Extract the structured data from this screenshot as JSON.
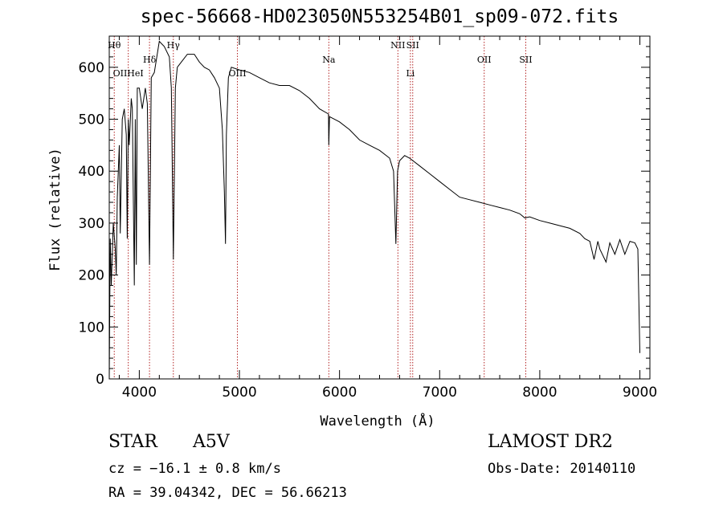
{
  "title": "spec-56668-HD023050N553254B01_sp09-072.fits",
  "info": {
    "class": "STAR",
    "subclass": "A5V",
    "survey": "LAMOST DR2",
    "cz": "cz = −16.1 ± 0.8 km/s",
    "obs_date": "Obs-Date: 20140110",
    "radec": "RA =  39.04342, DEC =  56.66213"
  },
  "chart_data": {
    "type": "line",
    "title": "spec-56668-HD023050N553254B01_sp09-072.fits",
    "xlabel": "Wavelength (Å)",
    "ylabel": "Flux (relative)",
    "xlim": [
      3700,
      9100
    ],
    "ylim": [
      0,
      660
    ],
    "xticks": [
      4000,
      5000,
      6000,
      7000,
      8000,
      9000
    ],
    "yticks": [
      0,
      100,
      200,
      300,
      400,
      500,
      600
    ],
    "series": [
      {
        "x": [
          3700,
          3710,
          3720,
          3740,
          3760,
          3770,
          3780,
          3800,
          3810,
          3830,
          3850,
          3870,
          3880,
          3890,
          3900,
          3920,
          3930,
          3950,
          3960,
          3970,
          3980,
          4000,
          4030,
          4060,
          4080,
          4102,
          4120,
          4150,
          4200,
          4250,
          4300,
          4320,
          4340,
          4360,
          4380,
          4420,
          4480,
          4550,
          4600,
          4650,
          4700,
          4750,
          4800,
          4830,
          4850,
          4861,
          4870,
          4890,
          4920,
          5000,
          5100,
          5200,
          5300,
          5400,
          5500,
          5600,
          5700,
          5800,
          5890,
          5893,
          5900,
          6000,
          6100,
          6200,
          6300,
          6400,
          6500,
          6540,
          6563,
          6580,
          6600,
          6650,
          6700,
          6800,
          6900,
          7000,
          7100,
          7200,
          7300,
          7400,
          7500,
          7600,
          7700,
          7800,
          7850,
          7900,
          8000,
          8100,
          8200,
          8300,
          8400,
          8450,
          8500,
          8542,
          8580,
          8600,
          8662,
          8700,
          8750,
          8800,
          8850,
          8900,
          8950,
          8980,
          9000
        ],
        "values": [
          0,
          270,
          180,
          300,
          250,
          200,
          350,
          450,
          280,
          500,
          520,
          470,
          270,
          500,
          450,
          540,
          520,
          180,
          500,
          220,
          560,
          560,
          520,
          560,
          530,
          220,
          580,
          590,
          650,
          640,
          620,
          560,
          230,
          560,
          600,
          610,
          625,
          625,
          610,
          600,
          595,
          580,
          560,
          480,
          360,
          260,
          470,
          580,
          600,
          595,
          590,
          580,
          570,
          565,
          565,
          555,
          540,
          520,
          510,
          450,
          505,
          495,
          480,
          460,
          450,
          440,
          425,
          400,
          260,
          400,
          420,
          430,
          425,
          410,
          395,
          380,
          365,
          350,
          345,
          340,
          335,
          330,
          325,
          318,
          310,
          312,
          305,
          300,
          295,
          290,
          280,
          270,
          265,
          230,
          265,
          250,
          225,
          262,
          240,
          268,
          240,
          265,
          262,
          250,
          50
        ]
      }
    ],
    "lines": [
      {
        "label": "Hθ",
        "x": 3750,
        "row": 1
      },
      {
        "label": "OIIHeI",
        "x": 3890,
        "row": 2
      },
      {
        "label": "Hδ",
        "x": 4102,
        "row": 3
      },
      {
        "label": "Hγ",
        "x": 4340,
        "row": 1
      },
      {
        "label": "OIII",
        "x": 4980,
        "row": 2
      },
      {
        "label": "Na",
        "x": 5893,
        "row": 3
      },
      {
        "label": "NII",
        "x": 6583,
        "row": 1
      },
      {
        "label": "SII",
        "x": 6731,
        "row": 1
      },
      {
        "label": "Li",
        "x": 6708,
        "row": 2
      },
      {
        "label": "OII",
        "x": 7445,
        "row": 3
      },
      {
        "label": "SII",
        "x": 7860,
        "row": 3
      }
    ]
  }
}
